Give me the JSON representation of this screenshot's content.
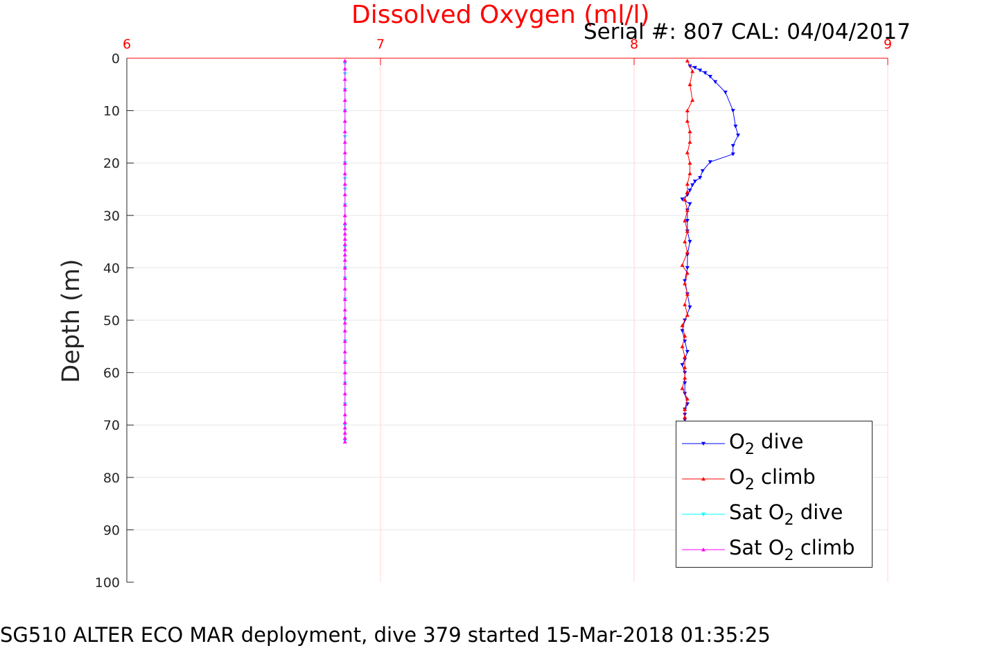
{
  "header": {
    "title": "Dissolved Oxygen (ml/l)",
    "serial": "Serial #: 807  CAL: 04/04/2017"
  },
  "footer": {
    "caption": "SG510 ALTER ECO MAR deployment, dive 379 started 15-Mar-2018 01:35:25"
  },
  "legend": {
    "items": [
      {
        "pre": "O",
        "sub": "2",
        "post": " dive"
      },
      {
        "pre": "O",
        "sub": "2",
        "post": " climb"
      },
      {
        "pre": "Sat O",
        "sub": "2",
        "post": " dive"
      },
      {
        "pre": "Sat O",
        "sub": "2",
        "post": " climb"
      }
    ]
  },
  "chart_data": {
    "type": "line",
    "ylabel": "Depth (m)",
    "xlim": [
      6,
      9
    ],
    "ylim": [
      0,
      100
    ],
    "y_reversed": true,
    "x_axis_position": "top",
    "x_ticks": [
      6,
      7,
      8,
      9
    ],
    "y_ticks": [
      0,
      10,
      20,
      30,
      40,
      50,
      60,
      70,
      80,
      90,
      100
    ],
    "grid": true,
    "legend_position": "bottom-right",
    "colors": {
      "O2 dive": "#0000ff",
      "O2 climb": "#ff0000",
      "Sat O2 dive": "#00ffff",
      "Sat O2 climb": "#ff00ff",
      "x_axis": "#ff0000",
      "y_axis": "#262626"
    },
    "series": [
      {
        "name": "O2 dive",
        "marker": "triangle-down",
        "points": [
          [
            8.22,
            1.5
          ],
          [
            8.24,
            1.8
          ],
          [
            8.26,
            2.3
          ],
          [
            8.28,
            2.8
          ],
          [
            8.3,
            3.5
          ],
          [
            8.32,
            4.5
          ],
          [
            8.36,
            6.5
          ],
          [
            8.39,
            10.0
          ],
          [
            8.4,
            13.0
          ],
          [
            8.41,
            14.7
          ],
          [
            8.39,
            16.7
          ],
          [
            8.39,
            18.3
          ],
          [
            8.3,
            19.8
          ],
          [
            8.27,
            21.5
          ],
          [
            8.26,
            22.8
          ],
          [
            8.24,
            23.5
          ],
          [
            8.23,
            24.2
          ],
          [
            8.22,
            25.2
          ],
          [
            8.21,
            26.1
          ],
          [
            8.19,
            26.9
          ],
          [
            8.22,
            27.8
          ],
          [
            8.21,
            29.0
          ],
          [
            8.21,
            31.0
          ],
          [
            8.21,
            33.0
          ],
          [
            8.22,
            35.0
          ],
          [
            8.21,
            37.5
          ],
          [
            8.21,
            40.0
          ],
          [
            8.2,
            42.5
          ],
          [
            8.21,
            45.0
          ],
          [
            8.22,
            47.5
          ],
          [
            8.2,
            50.0
          ],
          [
            8.19,
            52.0
          ],
          [
            8.2,
            54.0
          ],
          [
            8.21,
            56.0
          ],
          [
            8.2,
            57.5
          ],
          [
            8.19,
            58.5
          ],
          [
            8.2,
            60.0
          ],
          [
            8.2,
            62.0
          ],
          [
            8.2,
            64.0
          ],
          [
            8.21,
            66.0
          ],
          [
            8.2,
            67.0
          ],
          [
            8.2,
            68.0
          ],
          [
            8.2,
            69.0
          ]
        ]
      },
      {
        "name": "O2 climb",
        "marker": "triangle-up",
        "points": [
          [
            8.21,
            0.5
          ],
          [
            8.23,
            2.5
          ],
          [
            8.22,
            5.0
          ],
          [
            8.23,
            8.0
          ],
          [
            8.21,
            10.0
          ],
          [
            8.21,
            12.0
          ],
          [
            8.22,
            14.0
          ],
          [
            8.22,
            16.0
          ],
          [
            8.21,
            18.0
          ],
          [
            8.22,
            20.0
          ],
          [
            8.22,
            22.0
          ],
          [
            8.21,
            24.0
          ],
          [
            8.21,
            25.5
          ],
          [
            8.2,
            27.0
          ],
          [
            8.21,
            29.0
          ],
          [
            8.2,
            31.0
          ],
          [
            8.21,
            33.0
          ],
          [
            8.2,
            35.0
          ],
          [
            8.21,
            37.0
          ],
          [
            8.19,
            39.5
          ],
          [
            8.21,
            41.0
          ],
          [
            8.2,
            43.0
          ],
          [
            8.21,
            45.0
          ],
          [
            8.2,
            47.0
          ],
          [
            8.21,
            49.0
          ],
          [
            8.19,
            51.0
          ],
          [
            8.2,
            53.0
          ],
          [
            8.19,
            55.0
          ],
          [
            8.2,
            57.0
          ],
          [
            8.2,
            59.0
          ],
          [
            8.2,
            61.0
          ],
          [
            8.19,
            63.0
          ],
          [
            8.21,
            65.0
          ],
          [
            8.2,
            67.0
          ],
          [
            8.2,
            68.5
          ],
          [
            8.2,
            69.5
          ]
        ]
      },
      {
        "name": "Sat O2 dive",
        "marker": "triangle-down",
        "points": [
          [
            6.86,
            1.0
          ],
          [
            6.86,
            3.0
          ],
          [
            6.86,
            6.0
          ],
          [
            6.86,
            10.0
          ],
          [
            6.86,
            15.0
          ],
          [
            6.86,
            20.0
          ],
          [
            6.86,
            23.0
          ],
          [
            6.86,
            25.0
          ],
          [
            6.86,
            28.0
          ],
          [
            6.86,
            32.0
          ],
          [
            6.86,
            36.0
          ],
          [
            6.86,
            40.0
          ],
          [
            6.86,
            42.0
          ],
          [
            6.86,
            46.0
          ],
          [
            6.86,
            50.0
          ],
          [
            6.86,
            54.0
          ],
          [
            6.86,
            58.0
          ],
          [
            6.86,
            62.0
          ],
          [
            6.86,
            66.0
          ],
          [
            6.86,
            70.0
          ],
          [
            6.86,
            73.0
          ]
        ]
      },
      {
        "name": "Sat O2 climb",
        "marker": "triangle-up",
        "points": [
          [
            6.86,
            0.5
          ],
          [
            6.86,
            2.0
          ],
          [
            6.86,
            4.0
          ],
          [
            6.86,
            6.0
          ],
          [
            6.86,
            8.0
          ],
          [
            6.86,
            10.0
          ],
          [
            6.86,
            12.0
          ],
          [
            6.86,
            14.0
          ],
          [
            6.86,
            16.0
          ],
          [
            6.86,
            18.0
          ],
          [
            6.86,
            20.0
          ],
          [
            6.86,
            22.0
          ],
          [
            6.86,
            24.0
          ],
          [
            6.86,
            26.0
          ],
          [
            6.86,
            28.0
          ],
          [
            6.86,
            30.0
          ],
          [
            6.86,
            31.5
          ],
          [
            6.86,
            32.5
          ],
          [
            6.86,
            33.5
          ],
          [
            6.86,
            34.5
          ],
          [
            6.86,
            35.5
          ],
          [
            6.86,
            36.5
          ],
          [
            6.86,
            37.5
          ],
          [
            6.86,
            38.5
          ],
          [
            6.86,
            40.0
          ],
          [
            6.86,
            42.0
          ],
          [
            6.86,
            44.0
          ],
          [
            6.86,
            46.0
          ],
          [
            6.86,
            48.0
          ],
          [
            6.86,
            49.5
          ],
          [
            6.86,
            50.5
          ],
          [
            6.86,
            52.0
          ],
          [
            6.86,
            54.0
          ],
          [
            6.86,
            56.0
          ],
          [
            6.86,
            58.0
          ],
          [
            6.86,
            60.0
          ],
          [
            6.86,
            62.0
          ],
          [
            6.86,
            64.0
          ],
          [
            6.86,
            66.0
          ],
          [
            6.86,
            68.0
          ],
          [
            6.86,
            69.5
          ],
          [
            6.86,
            70.5
          ],
          [
            6.86,
            71.5
          ],
          [
            6.86,
            72.5
          ],
          [
            6.86,
            73.2
          ]
        ]
      }
    ]
  }
}
